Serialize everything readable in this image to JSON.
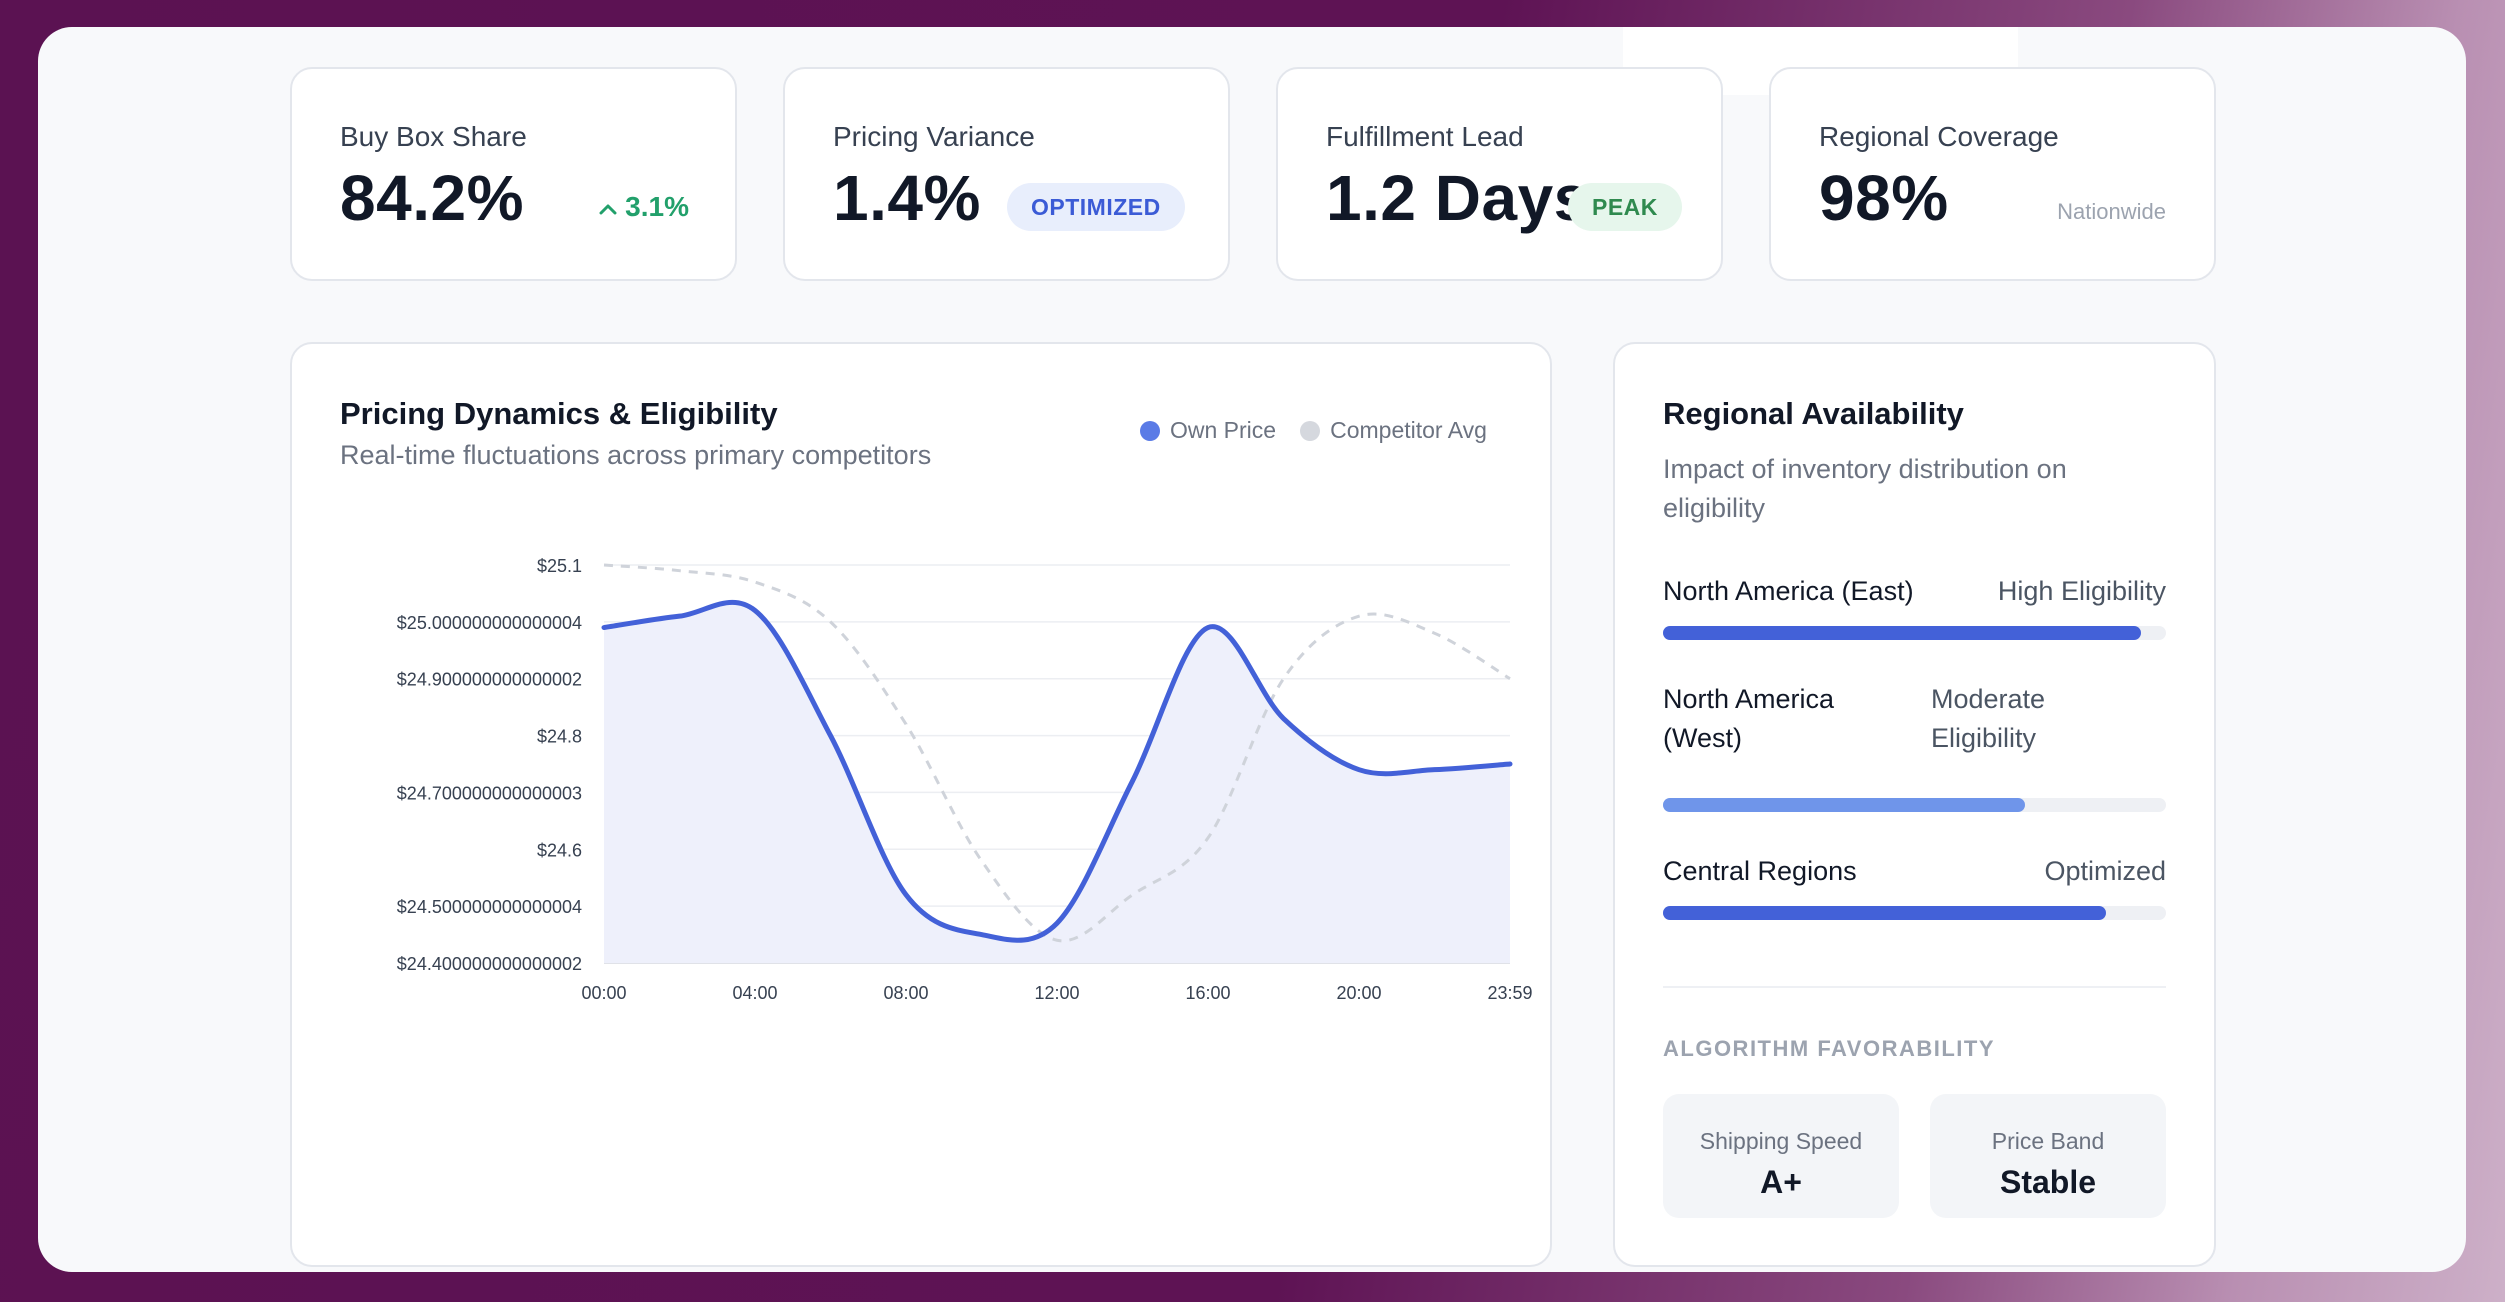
{
  "kpis": [
    {
      "label": "Buy Box Share",
      "value": "84.2%",
      "delta": "3.1%"
    },
    {
      "label": "Pricing Variance",
      "value": "1.4%",
      "badge": "OPTIMIZED"
    },
    {
      "label": "Fulfillment Lead",
      "value": "1.2 Days",
      "badge": "PEAK"
    },
    {
      "label": "Regional Coverage",
      "value": "98%",
      "sub": "Nationwide"
    }
  ],
  "pricing": {
    "title": "Pricing Dynamics & Eligibility",
    "subtitle": "Real-time fluctuations across primary competitors",
    "legend_own": "Own Price",
    "legend_comp": "Competitor Avg"
  },
  "chart_data": {
    "type": "line",
    "x": [
      "00:00",
      "02:00",
      "04:00",
      "06:00",
      "08:00",
      "10:00",
      "12:00",
      "14:00",
      "16:00",
      "18:00",
      "20:00",
      "22:00",
      "23:59"
    ],
    "x_ticks": [
      "00:00",
      "04:00",
      "08:00",
      "12:00",
      "16:00",
      "20:00",
      "23:59"
    ],
    "y_ticks": [
      "$25.1",
      "$25.000000000000004",
      "$24.900000000000002",
      "$24.8",
      "$24.700000000000003",
      "$24.6",
      "$24.500000000000004",
      "$24.400000000000002"
    ],
    "ylim": [
      24.4,
      25.1
    ],
    "series": [
      {
        "name": "Own Price",
        "color": "#4361d8",
        "style": "solid-area",
        "values": [
          24.99,
          25.01,
          25.02,
          24.8,
          24.52,
          24.45,
          24.47,
          24.72,
          24.99,
          24.83,
          24.74,
          24.74,
          24.75
        ]
      },
      {
        "name": "Competitor Avg",
        "color": "#cfd3da",
        "style": "dashed",
        "values": [
          25.1,
          25.09,
          25.07,
          25.0,
          24.82,
          24.58,
          24.44,
          24.52,
          24.62,
          24.9,
          25.01,
          24.98,
          24.9
        ]
      }
    ],
    "grid": true
  },
  "regional": {
    "title": "Regional Availability",
    "subtitle": "Impact of inventory distribution on eligibility",
    "regions": [
      {
        "name": "North America (East)",
        "status": "High Eligibility",
        "level": 0.95,
        "color": "#4361d8"
      },
      {
        "name": "North America (West)",
        "status": "Moderate Eligibility",
        "level": 0.72,
        "color": "#6f95ea"
      },
      {
        "name": "Central Regions",
        "status": "Optimized",
        "level": 0.88,
        "color": "#4361d8"
      }
    ],
    "algorithm_label": "ALGORITHM FAVORABILITY",
    "metrics": [
      {
        "label": "Shipping Speed",
        "value": "A+"
      },
      {
        "label": "Price Band",
        "value": "Stable"
      }
    ]
  }
}
